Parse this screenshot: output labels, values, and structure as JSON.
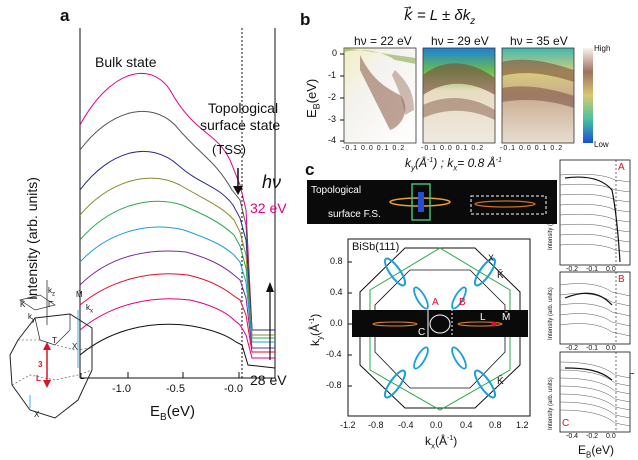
{
  "panel_a": {
    "letter": "a",
    "bulk_label": "Bulk state",
    "tss_label_1": "Topological",
    "tss_label_2": "surface state",
    "tss_abbrev": "(TSS)",
    "hv_symbol": "hν",
    "hv_top": "32 eV",
    "hv_bottom": "28 eV",
    "ylabel": "Intensity (arb. units)",
    "xlabel": "E",
    "xlabel_sub": "B",
    "xlabel_unit": "(eV)",
    "xticks": [
      "-1.0",
      "-0.5",
      "-0.0"
    ],
    "colors": {
      "hv_top": "#e0008a"
    }
  },
  "bz": {
    "labels": [
      "k",
      "z",
      "M̄",
      "Γ̄",
      "K̄",
      "k",
      "x",
      "k",
      "y",
      "T",
      "X",
      "L",
      "3",
      "X",
      "L"
    ]
  },
  "panel_b": {
    "letter": "b",
    "formula": "k⃗ = L ± δk",
    "formula_sub": "z",
    "maps": [
      "hν = 22 eV",
      "hν = 29 eV",
      "hν = 35 eV"
    ],
    "ylabel": "E",
    "ylabel_sub": "B",
    "ylabel_unit": "(eV)",
    "yticks": [
      "0",
      "-1",
      "-2",
      "-3",
      "-4"
    ],
    "xticks": [
      "-0.1",
      "0.0",
      "0.1",
      "0.2"
    ],
    "xlabel": "k",
    "xlabel_sub": "y",
    "xlabel_unit": "(Å",
    "xlabel_tail": "-1",
    "xlabel_rest": ")  ;  k",
    "xlabel_sub2": "x",
    "xlabel_end": "= 0.8 Å",
    "xlabel_end_sup": "-1",
    "colorbar_high": "High",
    "colorbar_low": "Low"
  },
  "panel_c": {
    "letter": "c",
    "strip_label_1": "Topological",
    "strip_label_2": "surface F.S.",
    "title": "BiSb(111)",
    "ylabel": "k",
    "ylabel_sub": "y",
    "ylabel_unit": "(Å",
    "ylabel_sup": "-1",
    "xlabel": "k",
    "xlabel_sub": "x",
    "xlabel_unit": "(Å",
    "xlabel_sup": "-1",
    "yticks": [
      "0.8",
      "0.4",
      "0.0",
      "-0.4",
      "-0.8"
    ],
    "xticks": [
      "-1.2",
      "-0.8",
      "-0.4",
      "0.0",
      "0.4",
      "0.8",
      "1.2"
    ],
    "point_labels": {
      "A": "A",
      "B": "B",
      "C": "C",
      "L": "L",
      "M": "M̄",
      "K1": "K̄",
      "K2": "K̄",
      "X": "X"
    },
    "colors": {
      "red": "#e0102a",
      "blue": "#1a9fdc",
      "green": "#2aa84a"
    }
  },
  "side": {
    "labels": [
      "A",
      "B",
      "C"
    ],
    "ylabel": "Intensity (arb. units)",
    "xticks_top": [
      "-0.2",
      "-0.1",
      "0.0"
    ],
    "xticks_mid": [
      "-0.2",
      "-0.1",
      "0.0"
    ],
    "xticks_bot": [
      "-0.4",
      "-0.2",
      "0.0"
    ],
    "xlabel": "E",
    "xlabel_sub": "B",
    "xlabel_unit": "(eV)",
    "gamma": "Γ̄"
  }
}
